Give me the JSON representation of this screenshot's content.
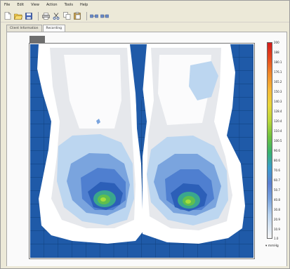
{
  "menu": [
    "File",
    "Edit",
    "View",
    "Action",
    "Tools",
    "Help"
  ],
  "toolbar": {
    "icons": [
      "new-icon",
      "open-icon",
      "save-icon",
      "print-icon",
      "cut-icon",
      "copy-icon",
      "paste-icon",
      "tile-horizontal-icon",
      "tile-vertical-icon"
    ]
  },
  "tabs": [
    {
      "label": "Client Information",
      "active": false
    },
    {
      "label": "Recording",
      "active": true
    }
  ],
  "scale": {
    "unit": "▾ mmHg",
    "labels": [
      "200",
      "188",
      "180.1",
      "176.1",
      "165.2",
      "150.3",
      "140.3",
      "128.4",
      "120.4",
      "110.4",
      "100.5",
      "90.6",
      "80.6",
      "70.6",
      "60.7",
      "50.7",
      "40.8",
      "30.8",
      "20.9",
      "10.9",
      "1.0"
    ],
    "gradient_top": "#d41a1a",
    "gradient_bottom": "#f6f6f6"
  },
  "colors": {
    "grid_background": "#1f5aa8",
    "grid_lines": "#0e3d7a",
    "low_pressure": "#ffffff",
    "peak": "#7fcc3a"
  }
}
